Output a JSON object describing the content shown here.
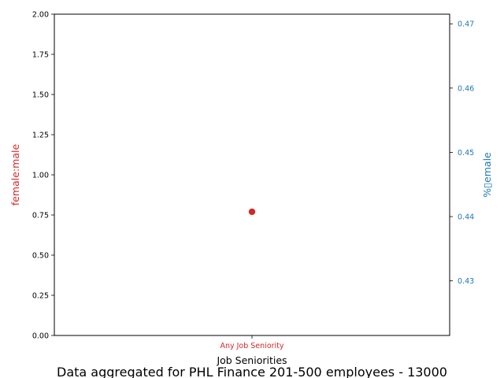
{
  "chart_data": {
    "type": "scatter",
    "title": "Data aggregated for PHL Finance 201-500 employees - 13000",
    "xlabel": "Job Seniorities",
    "categories": [
      "Any Job Seniority"
    ],
    "left_axis": {
      "label": "female:male",
      "color": "#d62728",
      "ylim": [
        0,
        2
      ],
      "ticks": [
        "0.00",
        "0.25",
        "0.50",
        "0.75",
        "1.00",
        "1.25",
        "1.50",
        "1.75",
        "2.00"
      ]
    },
    "right_axis": {
      "label": "%▯emale",
      "color": "#1f77b4",
      "ylim": [
        0.4215,
        0.4715
      ],
      "ticks": [
        "0.43",
        "0.44",
        "0.45",
        "0.46",
        "0.47"
      ]
    },
    "series": [
      {
        "axis": "left",
        "color": "#d62728",
        "values": [
          0.77
        ]
      }
    ],
    "grid": false
  }
}
